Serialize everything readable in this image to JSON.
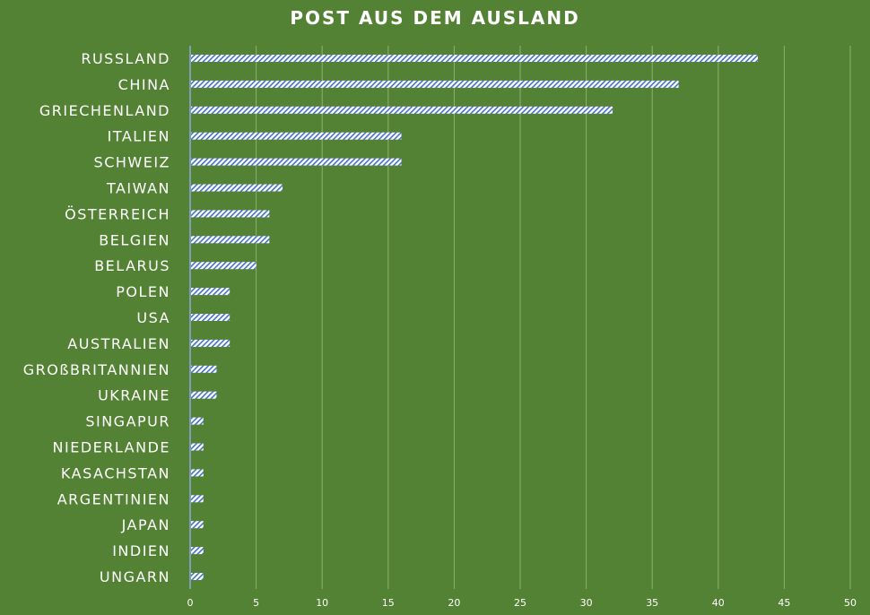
{
  "chart_data": {
    "type": "bar",
    "orientation": "horizontal",
    "title": "POST AUS DEM AUSLAND",
    "categories": [
      "RUSSLAND",
      "CHINA",
      "GRIECHENLAND",
      "ITALIEN",
      "SCHWEIZ",
      "TAIWAN",
      "ÖSTERREICH",
      "BELGIEN",
      "BELARUS",
      "POLEN",
      "USA",
      "AUSTRALIEN",
      "GROßBRITANNIEN",
      "UKRAINE",
      "SINGAPUR",
      "NIEDERLANDE",
      "KASACHSTAN",
      "ARGENTINIEN",
      "JAPAN",
      "INDIEN",
      "UNGARN"
    ],
    "values": [
      43,
      37,
      32,
      16,
      16,
      7,
      6,
      6,
      5,
      3,
      3,
      3,
      2,
      2,
      1,
      1,
      1,
      1,
      1,
      1,
      1
    ],
    "xlim": [
      0,
      50
    ],
    "xticks": [
      0,
      5,
      10,
      15,
      20,
      25,
      30,
      35,
      40,
      45,
      50
    ],
    "xlabel": "",
    "ylabel": "",
    "grid": true,
    "legend": "none",
    "colors": {
      "background": "#548235",
      "bar_fill": "#ffffff",
      "bar_hatch": "#4472c4",
      "grid": "#8fb071",
      "axis": "#8faadc"
    }
  }
}
